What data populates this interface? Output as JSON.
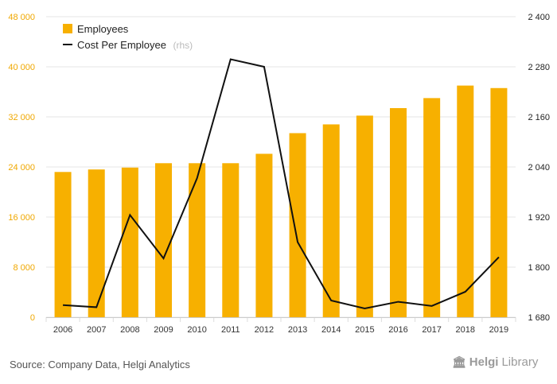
{
  "chart_data": {
    "type": "bar+line",
    "categories": [
      "2006",
      "2007",
      "2008",
      "2009",
      "2010",
      "2011",
      "2012",
      "2013",
      "2014",
      "2015",
      "2016",
      "2017",
      "2018",
      "2019"
    ],
    "series": [
      {
        "name": "Employees",
        "type": "bar",
        "axis": "left",
        "values": [
          23200,
          23600,
          23900,
          24600,
          24600,
          24600,
          26100,
          29400,
          30800,
          32200,
          33400,
          35000,
          37000,
          36600
        ]
      },
      {
        "name": "Cost Per Employee",
        "suffix": "(rhs)",
        "type": "line",
        "axis": "right",
        "values": [
          1709,
          1704,
          1925,
          1821,
          2013,
          2298,
          2280,
          1860,
          1720,
          1701,
          1717,
          1707,
          1741,
          1824
        ]
      }
    ],
    "y_left": {
      "min": 0,
      "max": 48000,
      "ticks": [
        "0",
        "8 000",
        "16 000",
        "24 000",
        "32 000",
        "40 000",
        "48 000"
      ]
    },
    "y_right": {
      "min": 1680,
      "max": 2400,
      "ticks": [
        "1 680",
        "1 800",
        "1 920",
        "2 040",
        "2 160",
        "2 280",
        "2 400"
      ]
    },
    "grid": true,
    "legend_position": "top-left",
    "colors": {
      "bar": "#f7b000",
      "line": "#111111",
      "grid": "#e6e6e6",
      "left_ticks": "#f0a800"
    }
  },
  "footer": {
    "source": "Source: Company Data, Helgi Analytics",
    "logo_bold": "Helgi",
    "logo_light": "Library"
  }
}
